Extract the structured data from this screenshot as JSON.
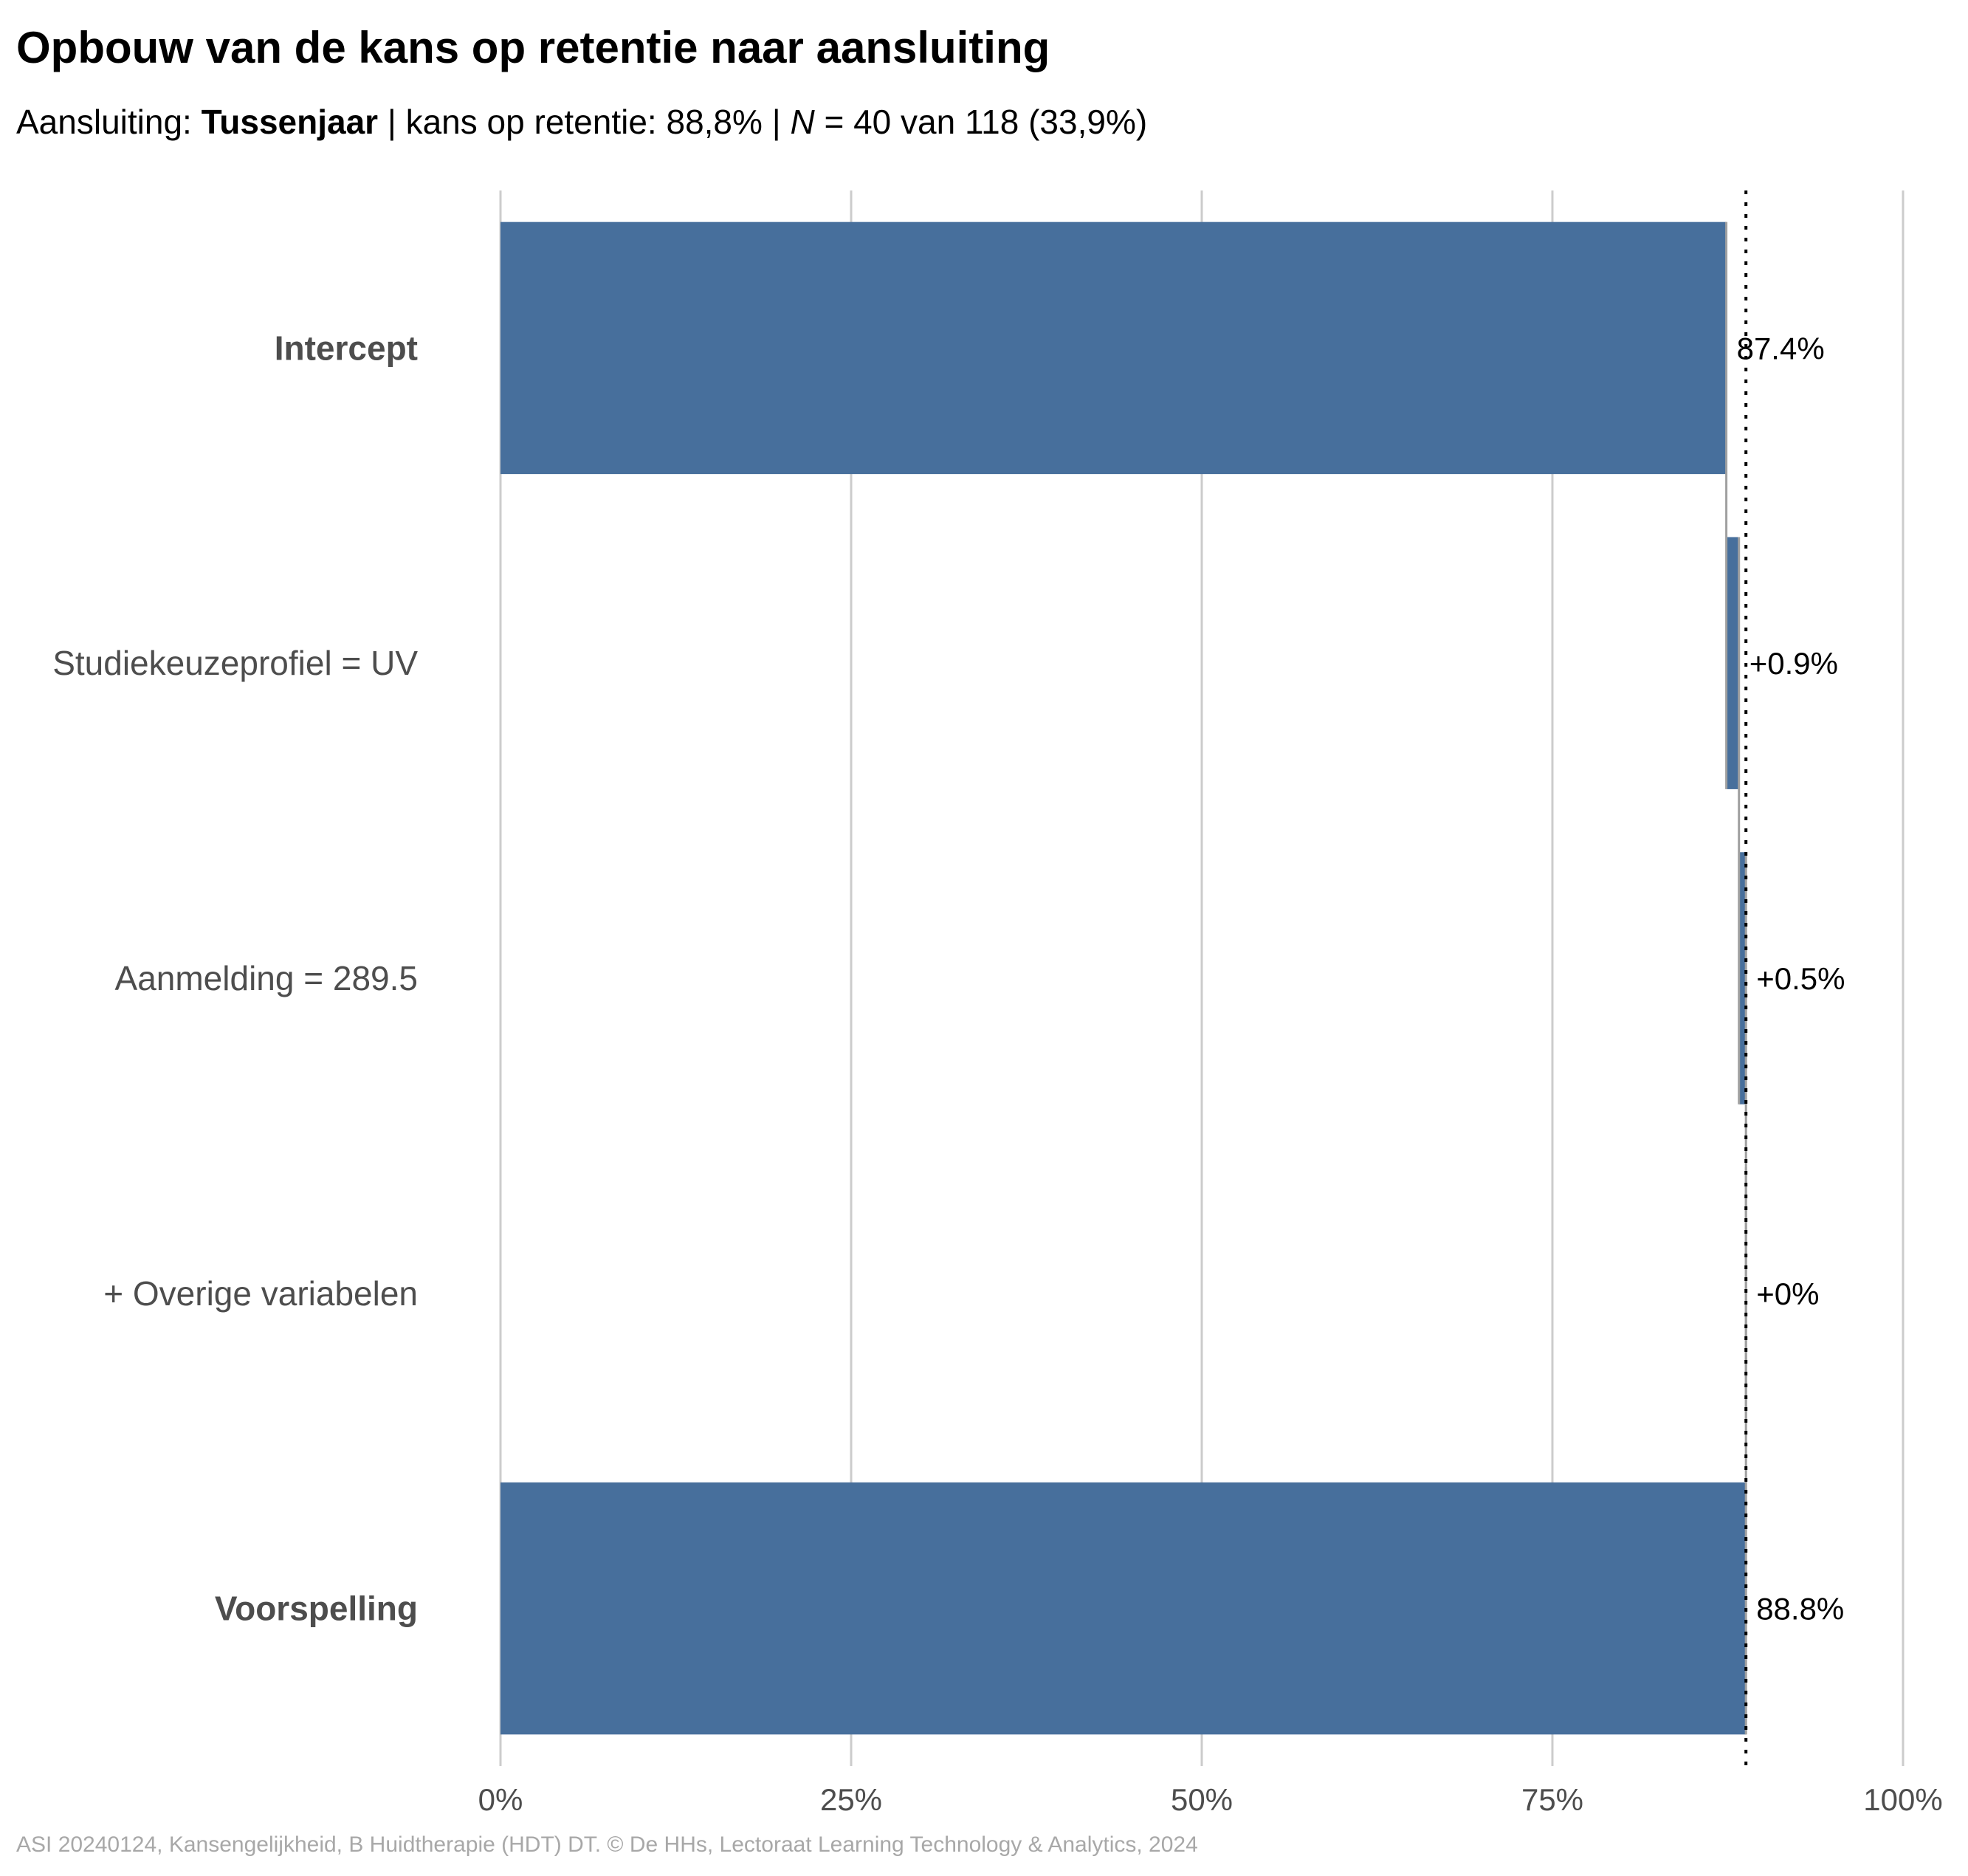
{
  "title": "Opbouw van de kans op retentie naar aansluiting",
  "subtitle": {
    "prefix": "Aansluiting: ",
    "group": "Tussenjaar",
    "middle": " | kans op retentie: 88,8% | ",
    "n_symbol": "N",
    "suffix": " = 40 van 118 (33,9%)"
  },
  "caption": "ASI 20240124, Kansengelijkheid, B Huidtherapie (HDT) DT. © De HHs, Lectoraat Learning Technology & Analytics, 2024",
  "colors": {
    "bar": "#476f9c",
    "grid": "#cccccc",
    "connector": "#a0a0a0",
    "reference_line": "#000000"
  },
  "chart_data": {
    "type": "bar",
    "orientation": "horizontal",
    "subtype": "waterfall",
    "categories": [
      "Intercept",
      "Studiekeuzeprofiel = UV",
      "Aanmelding = 289.5",
      "+ Overige variabelen",
      "Voorspelling"
    ],
    "bold_categories": [
      "Intercept",
      "Voorspelling"
    ],
    "values": [
      87.4,
      0.9,
      0.5,
      0,
      88.8
    ],
    "value_labels": [
      "87.4%",
      "+0.9%",
      "+0.5%",
      "+0%",
      "88.8%"
    ],
    "xlim": [
      0,
      100
    ],
    "x_ticks": [
      0,
      25,
      50,
      75,
      100
    ],
    "x_tick_labels": [
      "0%",
      "25%",
      "50%",
      "75%",
      "100%"
    ],
    "reference_line": 88.8,
    "grid": true
  }
}
